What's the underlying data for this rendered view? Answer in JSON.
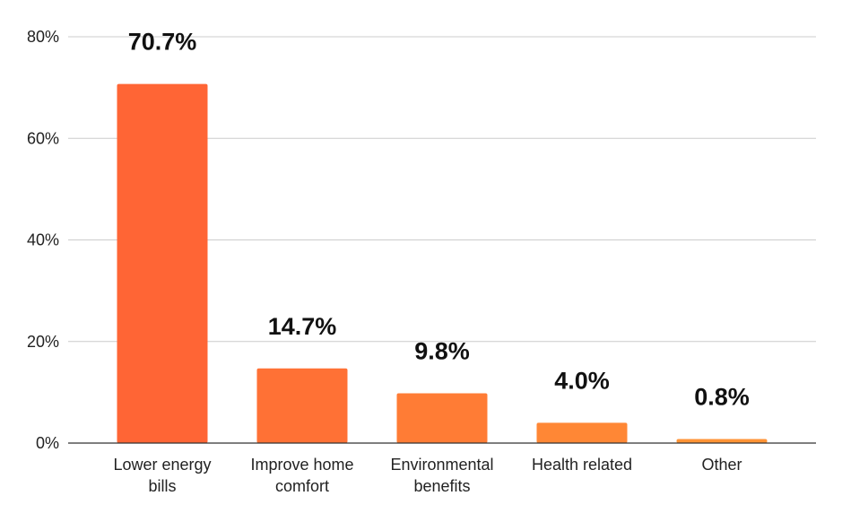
{
  "chart_data": {
    "type": "bar",
    "categories": [
      [
        "Lower energy",
        "bills"
      ],
      [
        "Improve home",
        "comfort"
      ],
      [
        "Environmental",
        "benefits"
      ],
      [
        "Health related"
      ],
      [
        "Other"
      ]
    ],
    "values": [
      70.7,
      14.7,
      9.8,
      4.0,
      0.8
    ],
    "data_labels": [
      "70.7%",
      "14.7%",
      "9.8%",
      "4.0%",
      "0.8%"
    ],
    "yticks": [
      0,
      20,
      40,
      60,
      80
    ],
    "ytick_labels": [
      "0%",
      "20%",
      "40%",
      "60%",
      "80%"
    ],
    "ylim": [
      0,
      80
    ],
    "grid": true,
    "legend": "none",
    "bar_colors": [
      "#ff6535",
      "#ff7135",
      "#ff7c35",
      "#ff8735",
      "#ff9335"
    ]
  }
}
